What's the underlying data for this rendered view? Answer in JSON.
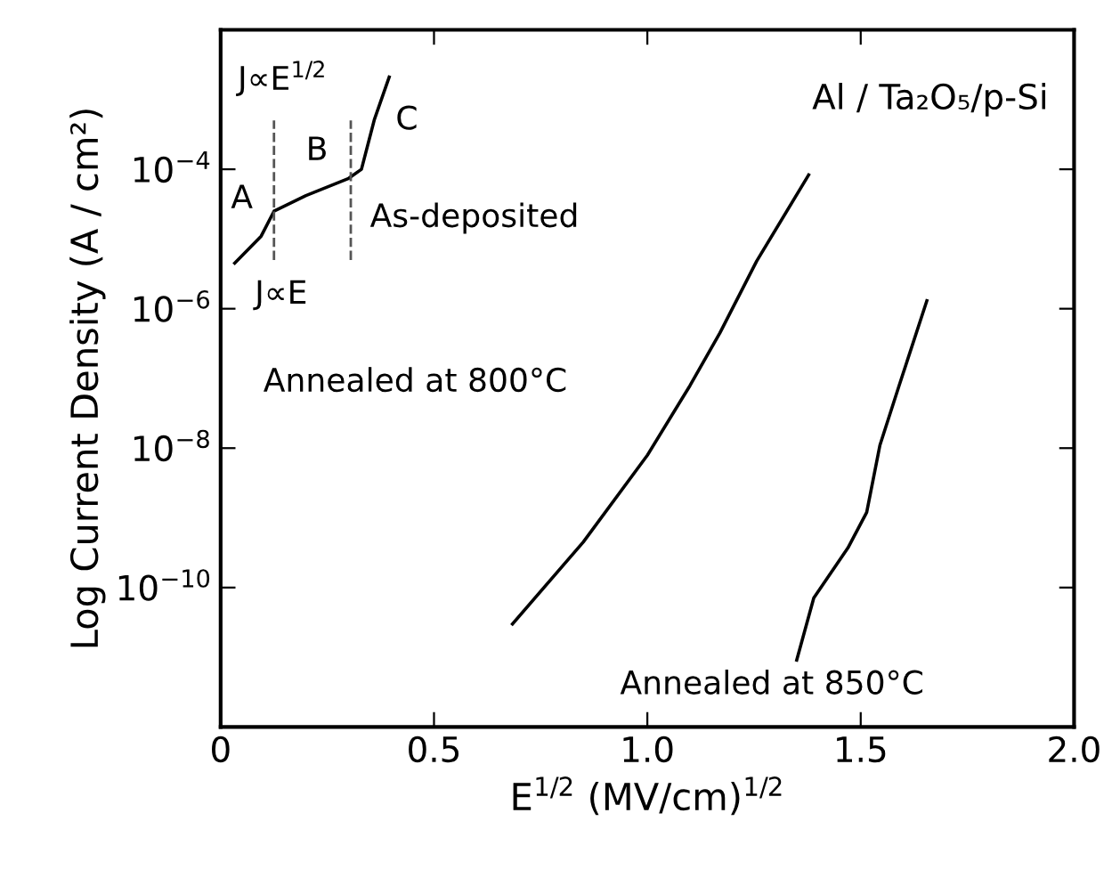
{
  "chart_data": {
    "type": "line",
    "title": "Al / Ta₂O₅/p-Si",
    "xlabel": "E$^{1/2}$ (MV/cm)$^{1/2}$",
    "ylabel": "Log Current Density (A / cm²)",
    "series": [
      {
        "color": "#000000",
        "x": [
          0.033,
          0.095,
          0.125,
          0.2,
          0.3,
          0.33,
          0.36,
          0.395
        ],
        "values": [
          4.5e-06,
          1.1e-05,
          2.5e-05,
          4.2e-05,
          7.4e-05,
          0.0001,
          0.00051,
          0.0021
        ]
      },
      {
        "color": "#000000",
        "x": [
          0.684,
          0.85,
          1.0,
          1.1,
          1.17,
          1.256,
          1.378
        ],
        "values": [
          3e-11,
          4.5e-10,
          7.9e-09,
          7.9e-08,
          4.5e-07,
          4.8e-06,
          8.3e-05
        ]
      },
      {
        "color": "#000000",
        "x": [
          1.35,
          1.39,
          1.47,
          1.514,
          1.545,
          1.59,
          1.655
        ],
        "values": [
          9.1e-12,
          7.1e-11,
          3.7e-10,
          1.2e-09,
          1.1e-08,
          7.9e-08,
          1.3e-06
        ]
      }
    ],
    "annotations": [
      "J∝E$^{1/2}$",
      "J∝E",
      "A",
      "B",
      "C",
      "As-deposited",
      "Annealed at 800°C",
      "Annealed at 850°C"
    ],
    "ref_lines": [
      {
        "axis": "x",
        "value": 0.125,
        "line_style": "dashed",
        "color": "#555555"
      },
      {
        "axis": "x",
        "value": 0.305,
        "line_style": "dashed",
        "color": "#555555"
      }
    ],
    "xlim": [
      0,
      2.0
    ],
    "ylim": [
      1e-12,
      0.01
    ],
    "xticks": [
      0,
      0.5,
      {
        "value": 1.0,
        "label": "1.0"
      },
      1.5,
      {
        "value": 2.0,
        "label": "2.0"
      }
    ],
    "yticks": [
      {
        "value": 0.0001,
        "label": "10$^{−4}$"
      },
      {
        "value": 1e-06,
        "label": "10$^{−6}$"
      },
      {
        "value": 1e-08,
        "label": "10$^{−8}$"
      },
      {
        "value": 1e-10,
        "label": "10$^{−10}$"
      }
    ],
    "log": "y",
    "grid": false,
    "legend": false,
    "marker": "none",
    "line_style": "solid"
  }
}
